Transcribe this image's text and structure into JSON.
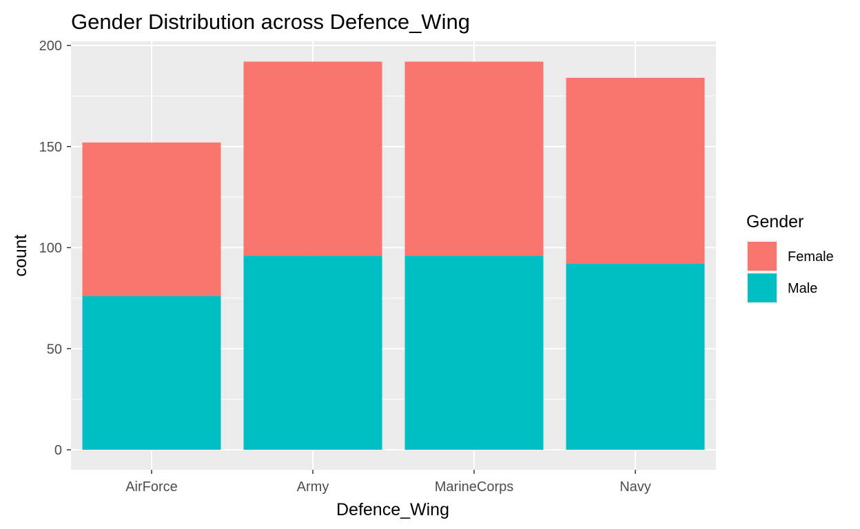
{
  "chart_data": {
    "type": "bar",
    "stacked": true,
    "title": "Gender Distribution across Defence_Wing",
    "xlabel": "Defence_Wing",
    "ylabel": "count",
    "categories": [
      "AirForce",
      "Army",
      "MarineCorps",
      "Navy"
    ],
    "series": [
      {
        "name": "Male",
        "color": "#00BFC4",
        "values": [
          76,
          96,
          96,
          92
        ]
      },
      {
        "name": "Female",
        "color": "#F8766D",
        "values": [
          76,
          96,
          96,
          92
        ]
      }
    ],
    "ylim": [
      0,
      200
    ],
    "yticks": [
      0,
      50,
      100,
      150,
      200
    ],
    "grid": true,
    "panel_background": "#EBEBEB",
    "legend": {
      "title": "Gender",
      "position": "right",
      "entries": [
        {
          "label": "Female",
          "color": "#F8766D"
        },
        {
          "label": "Male",
          "color": "#00BFC4"
        }
      ]
    }
  }
}
